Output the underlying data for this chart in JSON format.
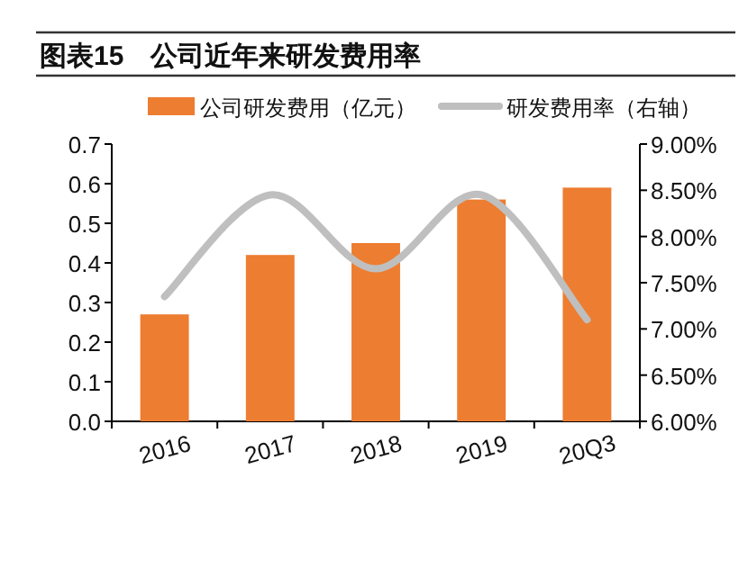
{
  "chart_data": {
    "type": "bar",
    "title": "图表15　公司近年来研发费用率",
    "categories": [
      "2016",
      "2017",
      "2018",
      "2019",
      "20Q3"
    ],
    "series": [
      {
        "name": "公司研发费用（亿元）",
        "color": "#ed7d31",
        "values": [
          0.27,
          0.42,
          0.45,
          0.56,
          0.59
        ]
      },
      {
        "name": "研发费用率（右轴）",
        "type": "line",
        "axis": "y2",
        "color": "#bfbfbf",
        "values": [
          7.35,
          8.45,
          7.65,
          8.45,
          7.1
        ]
      }
    ],
    "ylim": [
      0,
      0.7
    ],
    "yticks": [
      {
        "value": 0,
        "label": "0.0"
      },
      0.1,
      0.2,
      0.3,
      0.4,
      0.5,
      0.6,
      0.7
    ],
    "y2lim": [
      6,
      9
    ],
    "y2ticks": [
      {
        "value": 6,
        "label": "6.00%"
      },
      {
        "value": 6.5,
        "label": "6.50%"
      },
      {
        "value": 7,
        "label": "7.00%"
      },
      {
        "value": 7.5,
        "label": "7.50%"
      },
      {
        "value": 8,
        "label": "8.00%"
      },
      {
        "value": 8.5,
        "label": "8.50%"
      },
      {
        "value": 9,
        "label": "9.00%"
      }
    ],
    "legend": "top",
    "grid": false
  }
}
